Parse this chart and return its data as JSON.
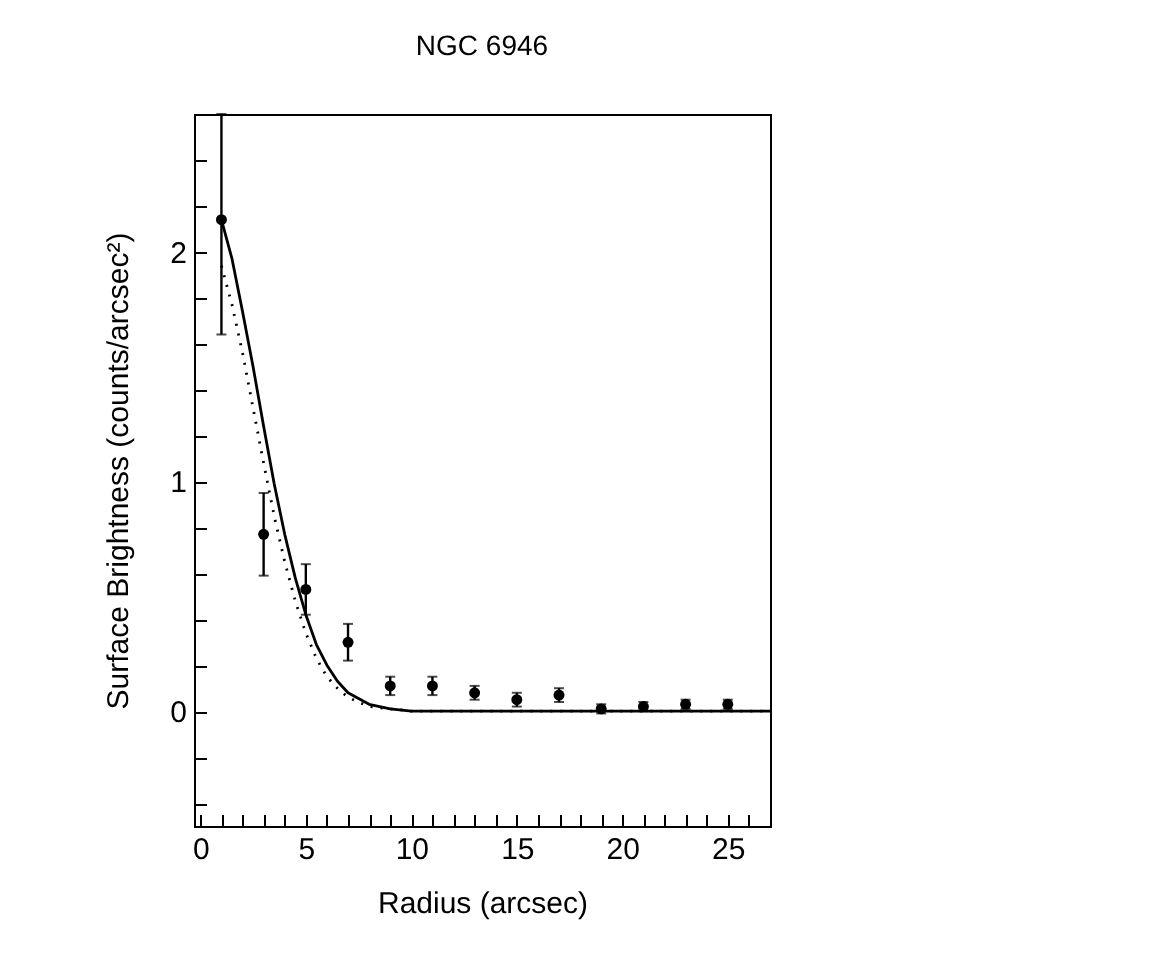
{
  "chart_data": {
    "type": "scatter",
    "title": "NGC 6946",
    "xlabel": "Radius (arcsec)",
    "ylabel": "Surface Brightness (counts/arcsec²)",
    "xlim": [
      -0.3,
      27
    ],
    "ylim": [
      -0.5,
      2.6
    ],
    "xticks": [
      0,
      {
        "value": 1,
        "label": null
      },
      {
        "value": 2,
        "label": null
      },
      {
        "value": 3,
        "label": null
      },
      {
        "value": 4,
        "label": null
      },
      5,
      {
        "value": 6,
        "label": null
      },
      {
        "value": 7,
        "label": null
      },
      {
        "value": 8,
        "label": null
      },
      {
        "value": 9,
        "label": null
      },
      10,
      {
        "value": 11,
        "label": null
      },
      {
        "value": 12,
        "label": null
      },
      {
        "value": 13,
        "label": null
      },
      {
        "value": 14,
        "label": null
      },
      15,
      {
        "value": 16,
        "label": null
      },
      {
        "value": 17,
        "label": null
      },
      {
        "value": 18,
        "label": null
      },
      {
        "value": 19,
        "label": null
      },
      20,
      {
        "value": 21,
        "label": null
      },
      {
        "value": 22,
        "label": null
      },
      {
        "value": 23,
        "label": null
      },
      {
        "value": 24,
        "label": null
      },
      25,
      {
        "value": 26,
        "label": null
      }
    ],
    "yticks": [
      {
        "value": -0.4,
        "label": null
      },
      {
        "value": -0.2,
        "label": null
      },
      0,
      {
        "value": 0.2,
        "label": null
      },
      {
        "value": 0.4,
        "label": null
      },
      {
        "value": 0.6,
        "label": null
      },
      {
        "value": 0.8,
        "label": null
      },
      1,
      {
        "value": 1.2,
        "label": null
      },
      {
        "value": 1.4,
        "label": null
      },
      {
        "value": 1.6,
        "label": null
      },
      {
        "value": 1.8,
        "label": null
      },
      2,
      {
        "value": 2.2,
        "label": null
      },
      {
        "value": 2.4,
        "label": null
      }
    ],
    "grid": false,
    "series": [
      {
        "marker": "circle",
        "color": "#000000",
        "x": [
          1,
          3,
          5,
          7,
          9,
          11,
          13,
          15,
          17,
          19,
          21,
          23,
          25
        ],
        "values": [
          2.14,
          0.77,
          0.53,
          0.3,
          0.11,
          0.11,
          0.08,
          0.05,
          0.07,
          0.01,
          0.02,
          0.03,
          0.03
        ],
        "errors": [
          [
            1.64,
            2.6
          ],
          0.18,
          0.11,
          0.08,
          0.04,
          0.04,
          0.03,
          0.03,
          0.03,
          0.02,
          0.02,
          0.02,
          0.02
        ]
      },
      {
        "type": "line",
        "line_style": "solid",
        "color": "#000000",
        "x": [
          1,
          1.5,
          2,
          2.5,
          3,
          3.5,
          4,
          4.5,
          5,
          5.5,
          6,
          6.5,
          7,
          8,
          9,
          10,
          12,
          15,
          20,
          25,
          27
        ],
        "values": [
          2.14,
          1.97,
          1.74,
          1.5,
          1.24,
          0.99,
          0.77,
          0.58,
          0.42,
          0.29,
          0.2,
          0.13,
          0.08,
          0.03,
          0.01,
          0,
          0,
          0,
          0,
          0,
          0
        ]
      },
      {
        "type": "line",
        "line_style": "dotted",
        "color": "#000000",
        "x": [
          1,
          1.5,
          2,
          2.5,
          3,
          3.5,
          4,
          4.5,
          5,
          5.5,
          6,
          6.5,
          7,
          8,
          9,
          10,
          12,
          15,
          20,
          25,
          27
        ],
        "values": [
          1.94,
          1.77,
          1.56,
          1.32,
          1.08,
          0.85,
          0.65,
          0.48,
          0.34,
          0.23,
          0.15,
          0.1,
          0.06,
          0.02,
          0.01,
          0,
          0,
          0,
          0,
          0,
          0
        ]
      }
    ]
  }
}
